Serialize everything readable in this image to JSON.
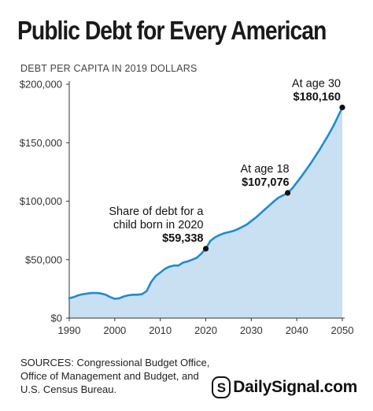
{
  "title": "Public Debt for Every American",
  "subtitle": "DEBT PER CAPITA IN 2019 DOLLARS",
  "sources": [
    "SOURCES: Congressional Budget Office,",
    "Office of Management and Budget, and",
    "U.S. Census Bureau."
  ],
  "brand": {
    "symbol": "S",
    "name": "DailySignal.com"
  },
  "colors": {
    "line": "#1f8ccc",
    "fill": "#c9dff2",
    "marker": "#111111",
    "axis": "#333333"
  },
  "chart_data": {
    "type": "area",
    "title": "Public Debt for Every American",
    "ylabel": "DEBT PER CAPITA IN 2019 DOLLARS",
    "xlabel": "",
    "xlim": [
      1990,
      2050
    ],
    "ylim": [
      0,
      200000
    ],
    "x_ticks": [
      1990,
      2000,
      2010,
      2020,
      2030,
      2040,
      2050
    ],
    "y_ticks": [
      {
        "value": 0,
        "label": "$0"
      },
      {
        "value": 50000,
        "label": "$50,000"
      },
      {
        "value": 100000,
        "label": "$100,000"
      },
      {
        "value": 150000,
        "label": "$150,000"
      },
      {
        "value": 200000,
        "label": "$200,000"
      }
    ],
    "grid": false,
    "series": [
      {
        "x": [
          1990,
          1991,
          1992,
          1993,
          1994,
          1995,
          1996,
          1997,
          1998,
          1999,
          2000,
          2001,
          2002,
          2003,
          2004,
          2005,
          2006,
          2007,
          2008,
          2009,
          2010,
          2011,
          2012,
          2013,
          2014,
          2015,
          2016,
          2017,
          2018,
          2019,
          2020,
          2021,
          2022,
          2023,
          2024,
          2025,
          2026,
          2027,
          2028,
          2029,
          2030,
          2031,
          2032,
          2033,
          2034,
          2035,
          2036,
          2037,
          2038,
          2039,
          2040,
          2041,
          2042,
          2043,
          2044,
          2045,
          2046,
          2047,
          2048,
          2049,
          2050
        ],
        "y": [
          17000,
          18000,
          19500,
          20500,
          21000,
          21500,
          21500,
          21000,
          20000,
          18000,
          16500,
          17000,
          18500,
          19500,
          20000,
          20000,
          20500,
          23000,
          31000,
          36000,
          39000,
          42000,
          44000,
          45000,
          45000,
          47500,
          48500,
          50000,
          51500,
          55000,
          59338,
          66000,
          69000,
          71000,
          72500,
          73500,
          74500,
          76000,
          78000,
          80000,
          83000,
          86000,
          89500,
          93000,
          96500,
          100000,
          103000,
          105000,
          107076,
          111000,
          116000,
          121000,
          126500,
          132000,
          138000,
          144000,
          150500,
          157000,
          164000,
          172000,
          180160
        ]
      }
    ],
    "markers": [
      {
        "x": 2020,
        "y": 59338,
        "lines": [
          "Share of debt for a",
          "child born in 2020"
        ],
        "value_label": "$59,338"
      },
      {
        "x": 2038,
        "y": 107076,
        "lines": [
          "At age 18"
        ],
        "value_label": "$107,076"
      },
      {
        "x": 2050,
        "y": 180160,
        "lines": [
          "At age 30"
        ],
        "value_label": "$180,160"
      }
    ]
  }
}
